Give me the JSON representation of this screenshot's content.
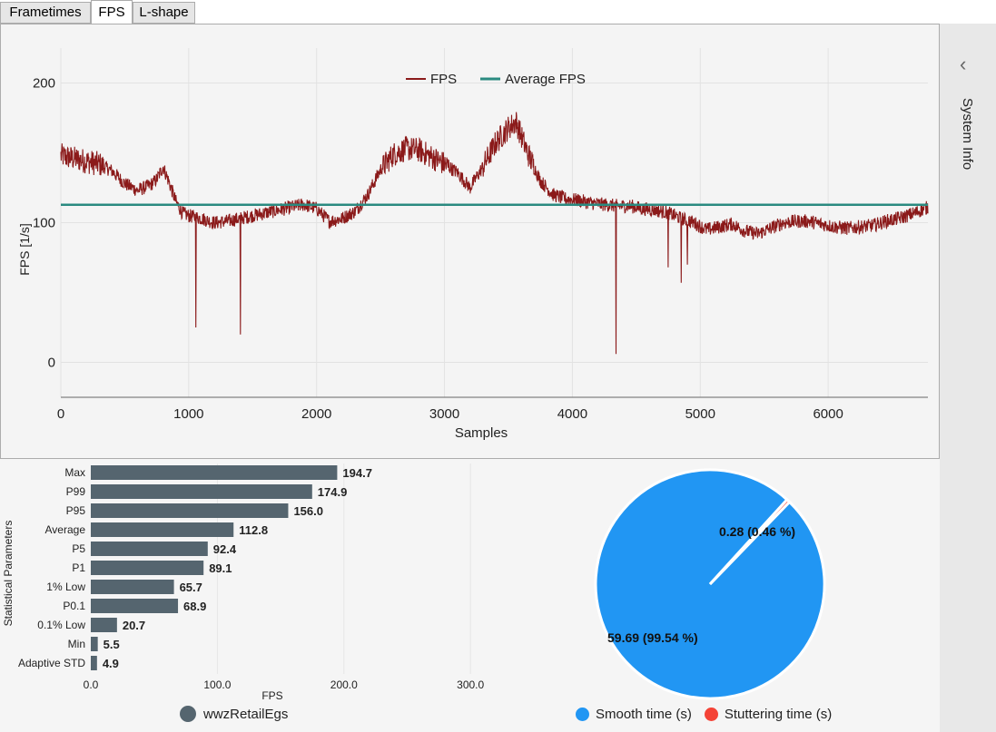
{
  "tabs": [
    {
      "label": "Frametimes",
      "active": false
    },
    {
      "label": "FPS",
      "active": true
    },
    {
      "label": "L-shape",
      "active": false
    }
  ],
  "side_panel": {
    "label": "System Info",
    "chevron_icon": "chevron-left-icon"
  },
  "colors": {
    "fps": "#8b1a1a",
    "average": "#2a8a80",
    "bar": "#55656f",
    "smooth": "#2196f3",
    "stutter": "#f44336"
  },
  "chart_data": [
    {
      "type": "line",
      "xlabel": "Samples",
      "ylabel": "FPS [1/s]",
      "xlim": [
        0,
        6780
      ],
      "ylim": [
        -25,
        225
      ],
      "xticks": [
        0,
        1000,
        2000,
        3000,
        4000,
        5000,
        6000
      ],
      "yticks": [
        0,
        100,
        200
      ],
      "grid": true,
      "legend": {
        "position": "top-center",
        "entries": [
          "FPS",
          "Average FPS"
        ]
      },
      "series": [
        {
          "name": "FPS",
          "x": [
            0,
            100,
            200,
            300,
            400,
            500,
            600,
            700,
            750,
            800,
            850,
            900,
            950,
            1000,
            1100,
            1200,
            1300,
            1400,
            1500,
            1600,
            1700,
            1800,
            1900,
            2000,
            2100,
            2200,
            2300,
            2400,
            2500,
            2600,
            2700,
            2800,
            2900,
            3000,
            3100,
            3200,
            3300,
            3400,
            3500,
            3560,
            3650,
            3750,
            3850,
            3950,
            4050,
            4150,
            4250,
            4350,
            4450,
            4550,
            4650,
            4750,
            4850,
            4950,
            5050,
            5150,
            5250,
            5350,
            5450,
            5550,
            5650,
            5750,
            5850,
            5950,
            6050,
            6150,
            6250,
            6350,
            6450,
            6550,
            6650,
            6780
          ],
          "y": [
            148,
            146,
            144,
            142,
            137,
            128,
            123,
            127,
            131,
            140,
            128,
            115,
            107,
            105,
            103,
            100,
            101,
            103,
            105,
            107,
            109,
            111,
            113,
            110,
            101,
            103,
            108,
            120,
            138,
            149,
            153,
            152,
            147,
            142,
            136,
            125,
            140,
            157,
            168,
            172,
            150,
            130,
            120,
            117,
            116,
            114,
            113,
            112,
            112,
            110,
            109,
            107,
            103,
            100,
            95,
            97,
            99,
            94,
            92,
            96,
            100,
            101,
            101,
            99,
            97,
            96,
            97,
            98,
            101,
            103,
            106,
            111
          ],
          "spikes": [
            {
              "x": 1055,
              "y": 25
            },
            {
              "x": 1405,
              "y": 20
            },
            {
              "x": 4340,
              "y": 6
            },
            {
              "x": 4750,
              "y": 68
            },
            {
              "x": 4850,
              "y": 57
            },
            {
              "x": 4900,
              "y": 70
            }
          ]
        },
        {
          "name": "Average FPS",
          "x": [
            0,
            6780
          ],
          "y": [
            112.8,
            112.8
          ]
        }
      ]
    },
    {
      "type": "bar",
      "orientation": "horizontal",
      "ylabel": "Statistical Parameters",
      "xlabel": "FPS",
      "xlim": [
        0,
        330
      ],
      "xticks": [
        "0.0",
        "100.0",
        "200.0",
        "300.0"
      ],
      "categories": [
        "Max",
        "P99",
        "P95",
        "Average",
        "P5",
        "P1",
        "1% Low",
        "P0.1",
        "0.1% Low",
        "Min",
        "Adaptive STD"
      ],
      "values": [
        194.7,
        174.9,
        156.0,
        112.8,
        92.4,
        89.1,
        65.7,
        68.9,
        20.7,
        5.5,
        4.9
      ],
      "value_labels": [
        "194.7",
        "174.9",
        "156.0",
        "112.8",
        "92.4",
        "89.1",
        "65.7",
        "68.9",
        "20.7",
        "5.5",
        "4.9"
      ],
      "series_name": "wwzRetailEgs"
    },
    {
      "type": "pie",
      "slices": [
        {
          "name": "Smooth time (s)",
          "value": 59.69,
          "percent": 99.54,
          "label": "59.69 (99.54 %)"
        },
        {
          "name": "Stuttering time (s)",
          "value": 0.28,
          "percent": 0.46,
          "label": "0.28 (0.46 %)"
        }
      ]
    }
  ]
}
